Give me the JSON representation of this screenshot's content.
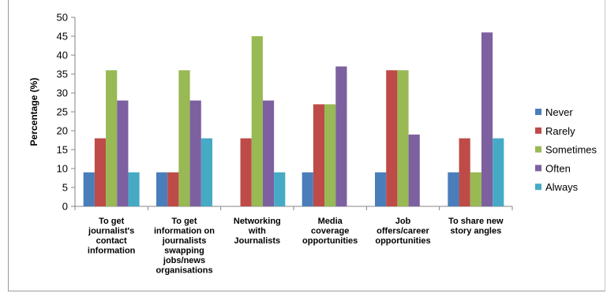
{
  "chart_data": {
    "type": "bar",
    "title": "",
    "xlabel": "",
    "ylabel": "Percentage (%)",
    "ylim": [
      0,
      50
    ],
    "yticks": [
      0,
      5,
      10,
      15,
      20,
      25,
      30,
      35,
      40,
      45,
      50
    ],
    "grid": false,
    "legend_position": "right",
    "categories": [
      [
        "To get",
        "journalist's",
        "contact",
        "information"
      ],
      [
        "To get",
        "information on",
        "journalists",
        "swapping",
        "jobs/news",
        "organisations"
      ],
      [
        "Networking",
        "with",
        "Journalists"
      ],
      [
        "Media",
        "coverage",
        "opportunities"
      ],
      [
        "Job",
        "offers/career",
        "opportunities"
      ],
      [
        "To share new",
        "story angles"
      ]
    ],
    "series": [
      {
        "name": "Never",
        "color": "#4a7ebb",
        "values": [
          9,
          9,
          0,
          9,
          9,
          9
        ]
      },
      {
        "name": "Rarely",
        "color": "#be4b48",
        "values": [
          18,
          9,
          18,
          27,
          36,
          18
        ]
      },
      {
        "name": "Sometimes",
        "color": "#98b954",
        "values": [
          36,
          36,
          45,
          27,
          36,
          9
        ]
      },
      {
        "name": "Often",
        "color": "#7d60a0",
        "values": [
          28,
          28,
          28,
          37,
          19,
          46
        ]
      },
      {
        "name": "Always",
        "color": "#46aac5",
        "values": [
          9,
          18,
          9,
          0,
          0,
          18
        ]
      }
    ]
  }
}
